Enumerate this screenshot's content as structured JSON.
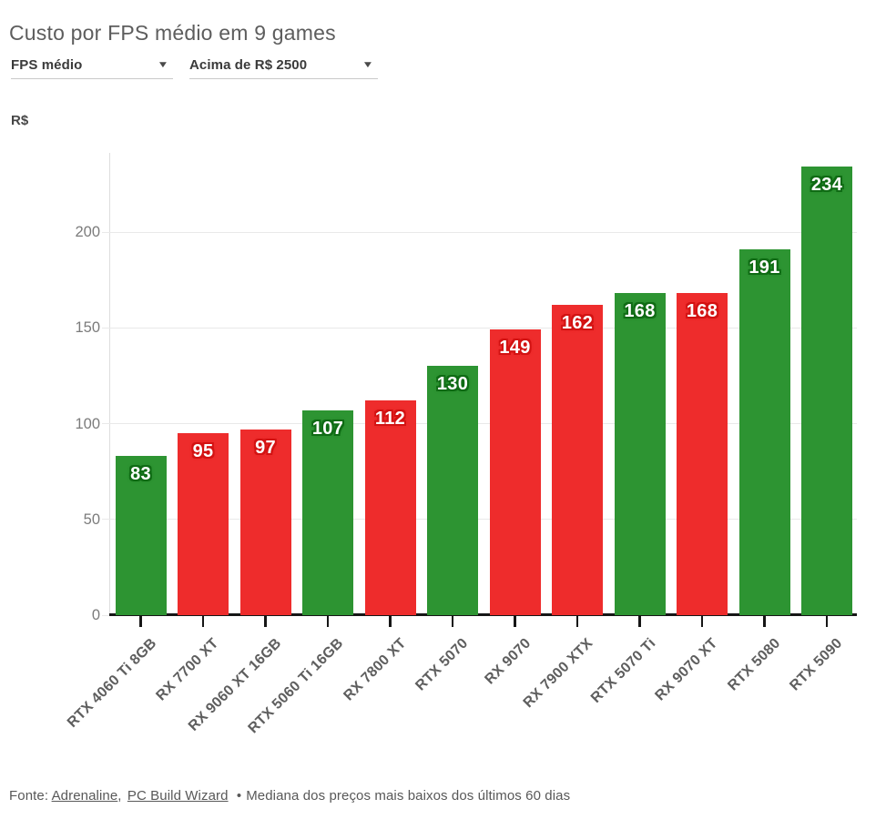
{
  "title": "Custo por FPS médio em 9 games",
  "controls": [
    {
      "label": "FPS médio",
      "icon": "chevron-down-icon"
    },
    {
      "label": "Acima de R$ 2500",
      "icon": "chevron-down-icon"
    }
  ],
  "chart_data": {
    "type": "bar",
    "title": "Custo por FPS médio em 9 games",
    "xlabel": "",
    "ylabel": "R$",
    "ylim": [
      0,
      240
    ],
    "yticks": [
      0,
      50,
      100,
      150,
      200
    ],
    "grid": true,
    "legend": false,
    "categories": [
      "RTX 4060 Ti 8GB",
      "RX 7700 XT",
      "RX 9060 XT 16GB",
      "RTX 5060 Ti 16GB",
      "RX 7800 XT",
      "RTX 5070",
      "RX 9070",
      "RX 7900 XTX",
      "RTX 5070 Ti",
      "RX 9070 XT",
      "RTX 5080",
      "RTX 5090"
    ],
    "values": [
      83,
      95,
      97,
      107,
      112,
      130,
      149,
      162,
      168,
      168,
      191,
      234
    ],
    "bar_colors": [
      "green",
      "red",
      "red",
      "green",
      "red",
      "green",
      "red",
      "red",
      "green",
      "red",
      "green",
      "green"
    ],
    "palette": {
      "green": "#2d9432",
      "red": "#ee2c2c"
    }
  },
  "footer": {
    "prefix": "Fonte:",
    "link1": "Adrenaline",
    "comma": ",",
    "link2": "PC Build Wizard",
    "bullet": "•",
    "note": "Mediana dos preços mais baixos dos últimos 60 dias"
  },
  "icons": {
    "dropdown_caret": "▼"
  }
}
